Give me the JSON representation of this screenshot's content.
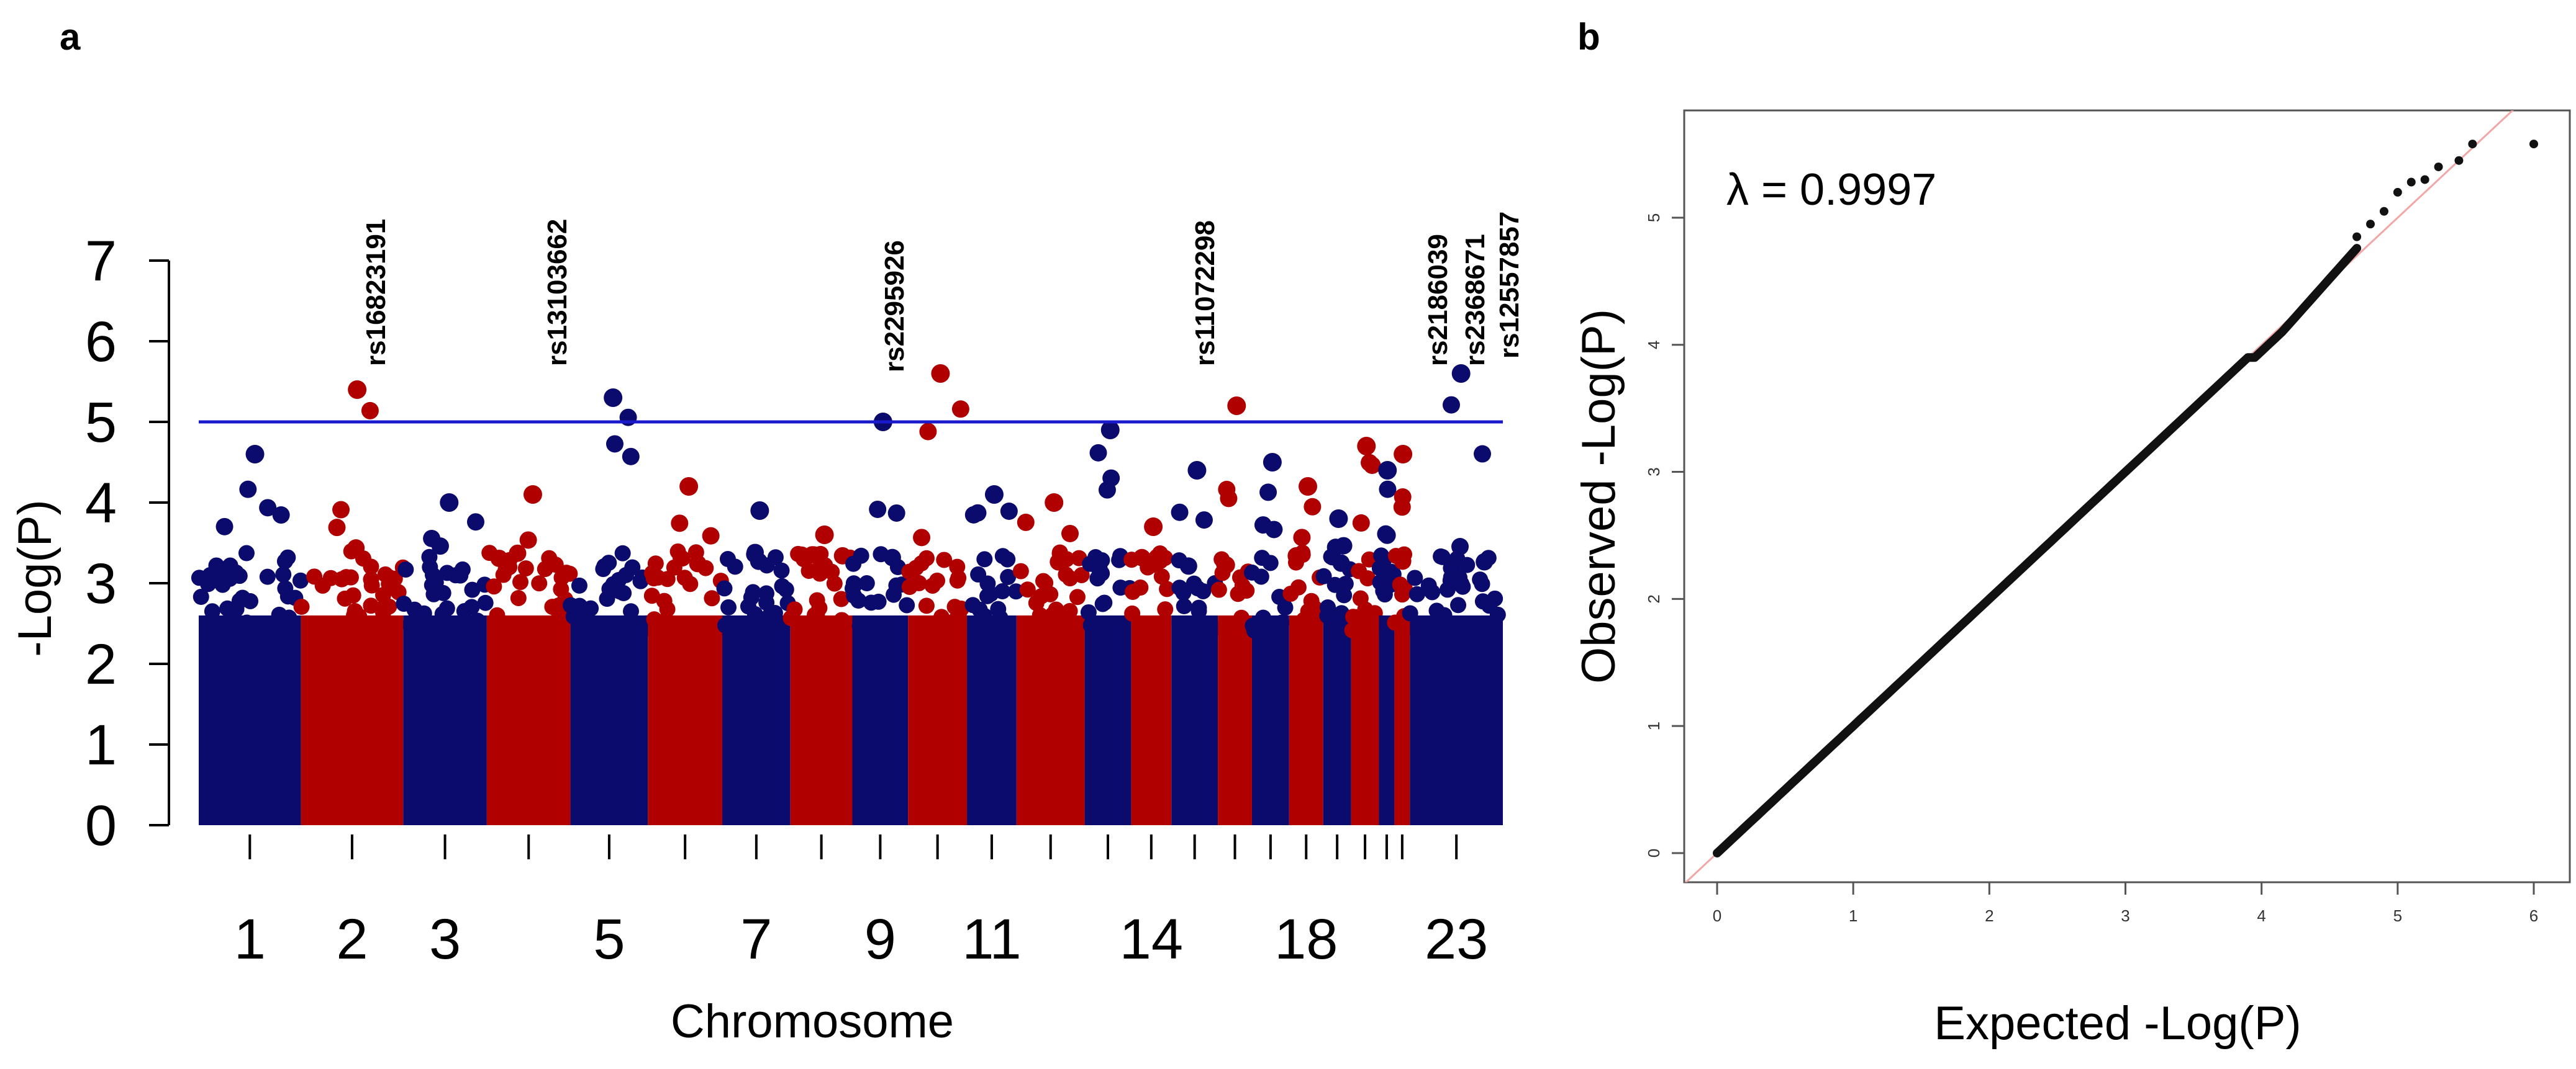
{
  "panels": {
    "a": "a",
    "b": "b"
  },
  "colors": {
    "chrom_odd": "#0b0b6e",
    "chrom_even": "#b00000",
    "threshold_line": "#1a1acc",
    "qq_points": "#111111",
    "qq_line": "#f2a6a6"
  },
  "chart_data": [
    {
      "type": "scatter",
      "subtype": "manhattan",
      "xlabel": "Chromosome",
      "ylabel": "-Log(P)",
      "ylim": [
        0,
        7
      ],
      "yticks": [
        0,
        1,
        2,
        3,
        4,
        5,
        6,
        7
      ],
      "x_tick_labels": [
        "1",
        "2",
        "3",
        "5",
        "7",
        "9",
        "11",
        "14",
        "18",
        "23"
      ],
      "chromosomes": [
        {
          "chr": "1",
          "max": 4.6
        },
        {
          "chr": "2",
          "max": 5.4
        },
        {
          "chr": "3",
          "max": 4.0
        },
        {
          "chr": "4",
          "max": 4.1
        },
        {
          "chr": "5",
          "max": 5.3
        },
        {
          "chr": "6",
          "max": 4.2
        },
        {
          "chr": "7",
          "max": 3.9
        },
        {
          "chr": "8",
          "max": 3.6
        },
        {
          "chr": "9",
          "max": 5.0
        },
        {
          "chr": "10",
          "max": 5.6
        },
        {
          "chr": "11",
          "max": 4.1
        },
        {
          "chr": "12",
          "max": 4.0
        },
        {
          "chr": "13",
          "max": 4.9
        },
        {
          "chr": "14",
          "max": 3.7
        },
        {
          "chr": "15",
          "max": 4.4
        },
        {
          "chr": "16",
          "max": 5.2
        },
        {
          "chr": "17",
          "max": 4.5
        },
        {
          "chr": "18",
          "max": 4.2
        },
        {
          "chr": "19",
          "max": 3.8
        },
        {
          "chr": "20",
          "max": 4.7
        },
        {
          "chr": "21",
          "max": 4.4
        },
        {
          "chr": "22",
          "max": 4.6
        },
        {
          "chr": "23",
          "max": 5.6
        }
      ],
      "threshold": 5,
      "annotations": [
        {
          "label": "rs16823191",
          "chr": "2",
          "value": 5.4
        },
        {
          "label": "rs13103662",
          "chr": "5",
          "value": 5.3
        },
        {
          "label": "rs2295926",
          "chr": "10",
          "value": 5.6
        },
        {
          "label": "rs11072298",
          "chr": "16",
          "value": 5.2
        },
        {
          "label": "rs2186039",
          "chr": "23",
          "value": 5.2
        },
        {
          "label": "rs2368671",
          "chr": "23",
          "value": 5.6
        },
        {
          "label": "rs12557857",
          "chr": "23",
          "value": 5.5
        }
      ]
    },
    {
      "type": "scatter",
      "subtype": "qq",
      "xlabel": "Expected -Log(P)",
      "ylabel": "Observed -Log(P)",
      "xlim": [
        0,
        6
      ],
      "ylim": [
        0,
        5.6
      ],
      "xticks": [
        0,
        1,
        2,
        3,
        4,
        5,
        6
      ],
      "yticks": [
        0,
        1,
        2,
        3,
        4,
        5
      ],
      "annotation": "λ = 0.9997",
      "tail_points": [
        [
          4.7,
          4.85
        ],
        [
          4.8,
          4.95
        ],
        [
          4.9,
          5.05
        ],
        [
          5.0,
          5.2
        ],
        [
          5.1,
          5.28
        ],
        [
          5.2,
          5.3
        ],
        [
          5.3,
          5.4
        ],
        [
          5.45,
          5.45
        ],
        [
          5.55,
          5.58
        ],
        [
          6.0,
          5.58
        ]
      ]
    }
  ]
}
